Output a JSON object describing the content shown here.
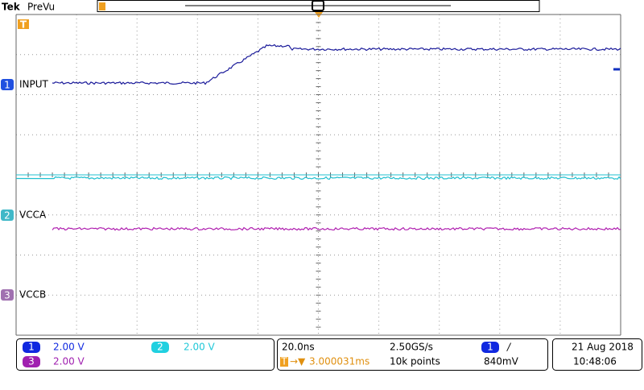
{
  "header": {
    "brand": "Tek",
    "mode": "PreVu",
    "trigger_marker": "T"
  },
  "channels": [
    {
      "number": "1",
      "label": "INPUT",
      "scale": "2.00 V"
    },
    {
      "number": "2",
      "label": "VCCA",
      "scale": "2.00 V"
    },
    {
      "number": "3",
      "label": "VCCB",
      "scale": "2.00 V"
    }
  ],
  "timebase": {
    "horizontal": "20.0ns",
    "sample_rate": "2.50GS/s",
    "trigger_icon": "T",
    "trigger_position": "3.000031ms",
    "record_length": "10k points"
  },
  "trigger": {
    "source": "1",
    "slope": "/",
    "level": "840mV"
  },
  "clock": {
    "date": "21 Aug 2018",
    "time": "10:48:06"
  }
}
